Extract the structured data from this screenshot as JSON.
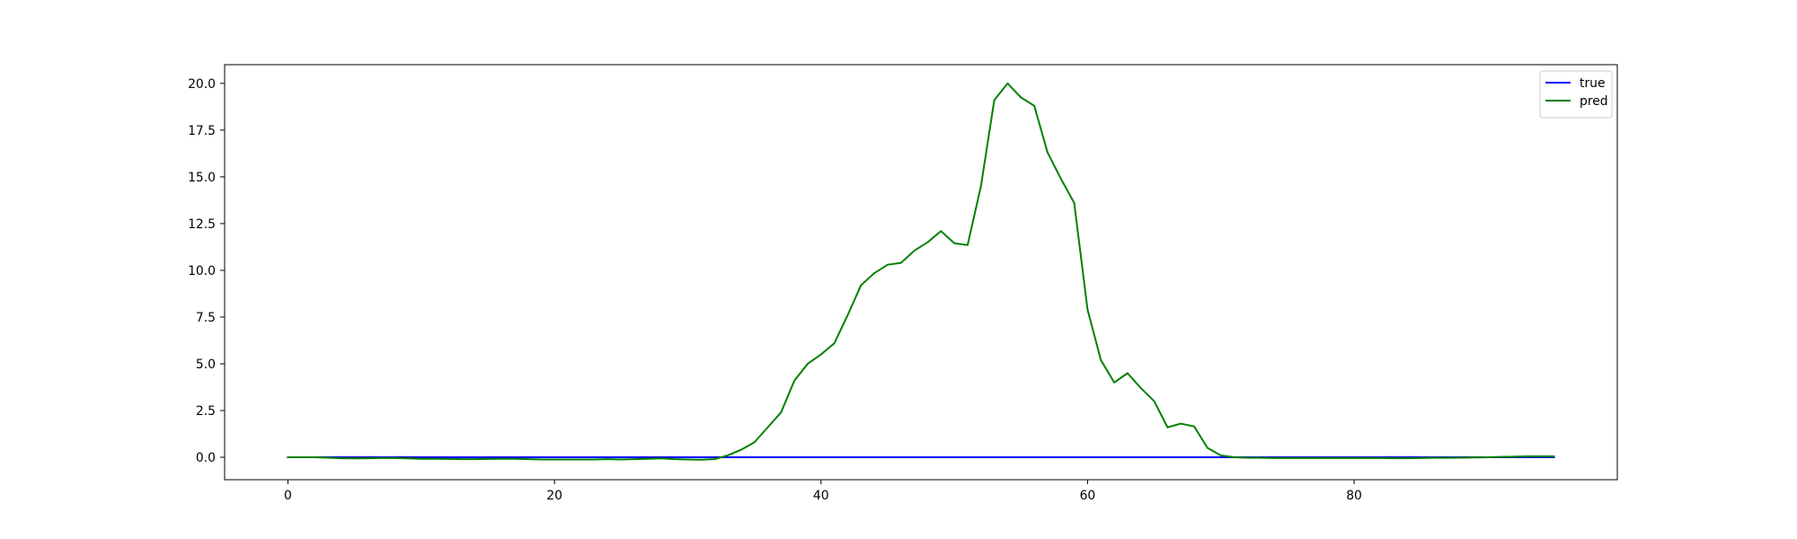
{
  "chart_data": {
    "type": "line",
    "title": "",
    "xlabel": "",
    "ylabel": "",
    "xlim": [
      -4.75,
      99.75
    ],
    "ylim": [
      -1.2,
      21.0
    ],
    "grid": false,
    "legend_position": "top-right",
    "x_ticks": [
      {
        "value": 0,
        "label": "0"
      },
      {
        "value": 20,
        "label": "20"
      },
      {
        "value": 40,
        "label": "40"
      },
      {
        "value": 60,
        "label": "60"
      },
      {
        "value": 80,
        "label": "80"
      }
    ],
    "y_ticks": [
      {
        "value": 0.0,
        "label": "0.0"
      },
      {
        "value": 2.5,
        "label": "2.5"
      },
      {
        "value": 5.0,
        "label": "5.0"
      },
      {
        "value": 7.5,
        "label": "7.5"
      },
      {
        "value": 10.0,
        "label": "10.0"
      },
      {
        "value": 12.5,
        "label": "12.5"
      },
      {
        "value": 15.0,
        "label": "15.0"
      },
      {
        "value": 17.5,
        "label": "17.5"
      },
      {
        "value": 20.0,
        "label": "20.0"
      }
    ],
    "series": [
      {
        "name": "true",
        "color": "#0000ff",
        "x": [
          0,
          95
        ],
        "values": [
          0,
          0
        ]
      },
      {
        "name": "pred",
        "color": "#008000",
        "x": [
          0,
          1,
          2,
          3,
          4,
          5,
          6,
          7,
          8,
          9,
          10,
          11,
          12,
          13,
          14,
          15,
          16,
          17,
          18,
          19,
          20,
          21,
          22,
          23,
          24,
          25,
          26,
          27,
          28,
          29,
          30,
          31,
          32,
          33,
          34,
          35,
          36,
          37,
          38,
          39,
          40,
          41,
          42,
          43,
          44,
          45,
          46,
          47,
          48,
          49,
          50,
          51,
          52,
          53,
          54,
          55,
          56,
          57,
          58,
          59,
          60,
          61,
          62,
          63,
          64,
          65,
          66,
          67,
          68,
          69,
          70,
          71,
          72,
          73,
          74,
          75,
          76,
          77,
          78,
          79,
          80,
          81,
          82,
          83,
          84,
          85,
          86,
          87,
          88,
          89,
          90,
          91,
          92,
          93,
          94,
          95
        ],
        "values": [
          0.0,
          0.0,
          0.0,
          -0.02,
          -0.05,
          -0.06,
          -0.05,
          -0.04,
          -0.04,
          -0.06,
          -0.08,
          -0.08,
          -0.09,
          -0.1,
          -0.1,
          -0.09,
          -0.08,
          -0.08,
          -0.1,
          -0.12,
          -0.12,
          -0.12,
          -0.12,
          -0.12,
          -0.1,
          -0.12,
          -0.1,
          -0.08,
          -0.06,
          -0.1,
          -0.12,
          -0.13,
          -0.1,
          0.1,
          0.4,
          0.8,
          1.6,
          2.4,
          4.1,
          5.0,
          5.5,
          6.1,
          7.6,
          9.2,
          9.85,
          10.3,
          10.4,
          11.05,
          11.5,
          12.1,
          11.45,
          11.35,
          14.5,
          19.1,
          20.0,
          19.25,
          18.8,
          16.3,
          14.9,
          13.6,
          7.9,
          5.2,
          4.0,
          4.5,
          3.7,
          3.0,
          1.6,
          1.8,
          1.65,
          0.5,
          0.1,
          0.0,
          -0.02,
          -0.03,
          -0.04,
          -0.04,
          -0.04,
          -0.04,
          -0.04,
          -0.04,
          -0.04,
          -0.04,
          -0.04,
          -0.05,
          -0.05,
          -0.04,
          -0.03,
          -0.03,
          -0.02,
          -0.01,
          0.0,
          0.02,
          0.03,
          0.05,
          0.05,
          0.05
        ]
      }
    ]
  }
}
